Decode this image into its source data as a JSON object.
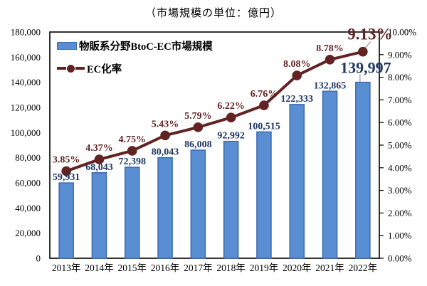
{
  "window": {
    "title": "（市場規模の単位：億円）"
  },
  "colors": {
    "bar_fill": "#5a8ed2",
    "bar_border": "#3e6db5",
    "line": "#622423",
    "value_label": "#1f3864",
    "pct_label": "#622423",
    "axis_text": "#000000",
    "leader": "#a6a6a6",
    "plot_border": "#000000",
    "background": "#ffffff"
  },
  "chart_data": {
    "type": "bar",
    "subtype": "combo-bar-line",
    "title": "（市場規模の単位：億円）",
    "grid": false,
    "legend_position": "top-left-inside",
    "categories": [
      "2013年",
      "2014年",
      "2015年",
      "2016年",
      "2017年",
      "2018年",
      "2019年",
      "2020年",
      "2021年",
      "2022年"
    ],
    "series": [
      {
        "name": "物販系分野BtoC-EC市場規模",
        "type": "bar",
        "axis": "left",
        "values": [
          59931,
          68043,
          72398,
          80043,
          86008,
          92992,
          100515,
          122333,
          132865,
          139997
        ],
        "labels": [
          "59,931",
          "68,043",
          "72,398",
          "80,043",
          "86,008",
          "92,992",
          "100,515",
          "122,333",
          "132,865",
          "139,997"
        ]
      },
      {
        "name": "EC化率",
        "type": "line",
        "axis": "right",
        "values": [
          3.85,
          4.37,
          4.75,
          5.43,
          5.79,
          6.22,
          6.76,
          8.08,
          8.78,
          9.13
        ],
        "labels": [
          "3.85%",
          "4.37%",
          "4.75%",
          "5.43%",
          "5.79%",
          "6.22%",
          "6.76%",
          "8.08%",
          "8.78%",
          "9.13%"
        ]
      }
    ],
    "left_axis": {
      "min": 0,
      "max": 180000,
      "tick_labels": [
        "180,000",
        "160,000",
        "140,000",
        "120,000",
        "100,000",
        "80,000",
        "60,000",
        "40,000",
        "20,000",
        "0"
      ]
    },
    "right_axis": {
      "min": 0,
      "max": 10,
      "tick_labels": [
        "10.00%",
        "9.00%",
        "8.00%",
        "7.00%",
        "6.00%",
        "5.00%",
        "4.00%",
        "3.00%",
        "2.00%",
        "1.00%",
        "0.00%"
      ]
    },
    "emphasized_last_point": true
  }
}
